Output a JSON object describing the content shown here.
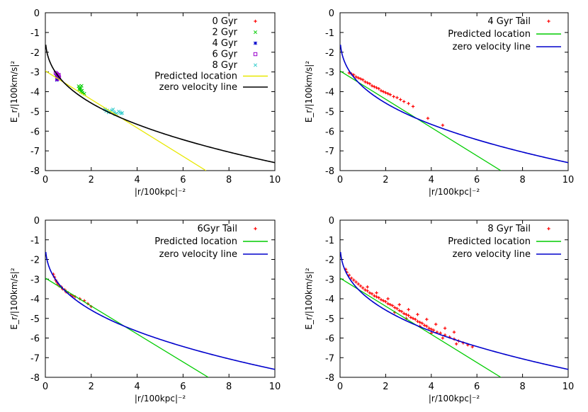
{
  "chart_data": [
    {
      "type": "scatter",
      "xlabel": "|r/100kpc|⁻²",
      "ylabel": "E_r/|100km/s|²",
      "xlim": [
        0,
        10
      ],
      "ylim": [
        -8,
        0
      ],
      "xticks": [
        "0",
        "2",
        "4",
        "6",
        "8",
        "10"
      ],
      "yticks": [
        "0",
        "-1",
        "-2",
        "-3",
        "-4",
        "-5",
        "-6",
        "-7",
        "-8"
      ],
      "legend_position": "top-right",
      "grid": false,
      "series": [
        {
          "name": "0 Gyr",
          "kind": "points",
          "marker": "+",
          "color": "#ff0000",
          "points": [
            [
              0.55,
              -3.12
            ]
          ]
        },
        {
          "name": "2 Gyr",
          "kind": "points",
          "marker": "x",
          "color": "#00cc00",
          "points": [
            [
              1.45,
              -3.72
            ],
            [
              1.5,
              -3.78
            ],
            [
              1.55,
              -3.82
            ],
            [
              1.5,
              -3.9
            ],
            [
              1.6,
              -3.95
            ],
            [
              1.55,
              -4.0
            ],
            [
              1.62,
              -4.05
            ],
            [
              1.7,
              -4.1
            ],
            [
              1.48,
              -3.85
            ],
            [
              1.58,
              -3.7
            ]
          ]
        },
        {
          "name": "4 Gyr",
          "kind": "points",
          "marker": "*",
          "color": "#0000cc",
          "points": [
            [
              0.48,
              -3.18
            ],
            [
              0.52,
              -3.25
            ],
            [
              0.56,
              -3.32
            ],
            [
              0.5,
              -3.4
            ]
          ]
        },
        {
          "name": "6 Gyr",
          "kind": "points",
          "marker": "square",
          "color": "#9900cc",
          "points": [
            [
              0.45,
              -3.05
            ],
            [
              0.5,
              -3.1
            ],
            [
              0.55,
              -3.2
            ],
            [
              0.6,
              -3.28
            ],
            [
              0.52,
              -3.35
            ],
            [
              0.58,
              -3.15
            ]
          ]
        },
        {
          "name": "8 Gyr",
          "kind": "points",
          "marker": "x",
          "color": "#33cccc",
          "points": [
            [
              2.6,
              -4.9
            ],
            [
              2.7,
              -4.95
            ],
            [
              2.8,
              -5.0
            ],
            [
              2.9,
              -4.95
            ],
            [
              3.0,
              -5.05
            ],
            [
              3.1,
              -5.1
            ],
            [
              3.2,
              -5.0
            ],
            [
              3.3,
              -5.1
            ],
            [
              2.75,
              -5.05
            ],
            [
              2.95,
              -4.9
            ],
            [
              3.05,
              -5.15
            ],
            [
              3.25,
              -5.05
            ],
            [
              2.65,
              -4.98
            ],
            [
              3.35,
              -5.08
            ]
          ]
        },
        {
          "name": "Predicted location",
          "kind": "line",
          "color": "#e8e800",
          "points": [
            [
              0,
              -2.95
            ],
            [
              7.0,
              -8.0
            ]
          ]
        },
        {
          "name": "zero velocity line",
          "kind": "zvl",
          "color": "#000000"
        }
      ]
    },
    {
      "type": "scatter",
      "xlabel": "|r/100kpc|⁻²",
      "ylabel": "E_r/|100km/s|²",
      "xlim": [
        0,
        10
      ],
      "ylim": [
        -8,
        0
      ],
      "xticks": [
        "0",
        "2",
        "4",
        "6",
        "8",
        "10"
      ],
      "yticks": [
        "0",
        "-1",
        "-2",
        "-3",
        "-4",
        "-5",
        "-6",
        "-7",
        "-8"
      ],
      "legend_position": "top-right",
      "grid": false,
      "series": [
        {
          "name": "4 Gyr Tail",
          "kind": "points",
          "marker": "+",
          "color": "#ff0000",
          "points": [
            [
              0.4,
              -3.05
            ],
            [
              0.5,
              -3.1
            ],
            [
              0.6,
              -3.15
            ],
            [
              0.7,
              -3.25
            ],
            [
              0.8,
              -3.3
            ],
            [
              0.9,
              -3.35
            ],
            [
              1.0,
              -3.4
            ],
            [
              1.1,
              -3.5
            ],
            [
              1.2,
              -3.55
            ],
            [
              1.3,
              -3.6
            ],
            [
              1.4,
              -3.7
            ],
            [
              1.5,
              -3.75
            ],
            [
              1.6,
              -3.8
            ],
            [
              1.7,
              -3.85
            ],
            [
              1.8,
              -3.95
            ],
            [
              1.9,
              -4.0
            ],
            [
              2.0,
              -4.05
            ],
            [
              2.1,
              -4.1
            ],
            [
              2.2,
              -4.15
            ],
            [
              2.35,
              -4.25
            ],
            [
              2.5,
              -4.3
            ],
            [
              2.65,
              -4.4
            ],
            [
              2.8,
              -4.5
            ],
            [
              3.0,
              -4.6
            ],
            [
              3.2,
              -4.75
            ],
            [
              3.85,
              -5.35
            ],
            [
              4.5,
              -5.7
            ]
          ]
        },
        {
          "name": "Predicted location",
          "kind": "line",
          "color": "#00cc00",
          "points": [
            [
              0,
              -2.95
            ],
            [
              7.05,
              -8.0
            ]
          ]
        },
        {
          "name": "zero velocity line",
          "kind": "zvl",
          "color": "#0000cc"
        }
      ]
    },
    {
      "type": "scatter",
      "xlabel": "|r/100kpc|⁻²",
      "ylabel": "E_r/|100km/s|²",
      "xlim": [
        0,
        10
      ],
      "ylim": [
        -8,
        0
      ],
      "xticks": [
        "0",
        "2",
        "4",
        "6",
        "8",
        "10"
      ],
      "yticks": [
        "0",
        "-1",
        "-2",
        "-3",
        "-4",
        "-5",
        "-6",
        "-7",
        "-8"
      ],
      "legend_position": "top-right",
      "grid": false,
      "series": [
        {
          "name": "6Gyr Tail",
          "kind": "points",
          "marker": "+",
          "color": "#ff0000",
          "points": [
            [
              0.35,
              -2.75
            ],
            [
              0.4,
              -2.9
            ],
            [
              0.45,
              -3.05
            ],
            [
              0.5,
              -3.15
            ],
            [
              0.55,
              -3.25
            ],
            [
              0.6,
              -3.35
            ],
            [
              0.7,
              -3.4
            ],
            [
              0.75,
              -3.5
            ],
            [
              0.85,
              -3.55
            ],
            [
              0.9,
              -3.65
            ],
            [
              1.0,
              -3.7
            ],
            [
              1.1,
              -3.8
            ],
            [
              1.2,
              -3.85
            ],
            [
              1.3,
              -3.9
            ],
            [
              1.5,
              -4.0
            ],
            [
              1.7,
              -4.1
            ],
            [
              1.85,
              -4.25
            ],
            [
              2.0,
              -4.4
            ]
          ]
        },
        {
          "name": "Predicted location",
          "kind": "line",
          "color": "#00cc00",
          "points": [
            [
              0,
              -2.95
            ],
            [
              7.1,
              -8.0
            ]
          ]
        },
        {
          "name": "zero velocity line",
          "kind": "zvl",
          "color": "#0000cc"
        }
      ]
    },
    {
      "type": "scatter",
      "xlabel": "|r/100kpc|⁻²",
      "ylabel": "E_r/|100km/s|²",
      "xlim": [
        0,
        10
      ],
      "ylim": [
        -8,
        0
      ],
      "xticks": [
        "0",
        "2",
        "4",
        "6",
        "8",
        "10"
      ],
      "yticks": [
        "0",
        "-1",
        "-2",
        "-3",
        "-4",
        "-5",
        "-6",
        "-7",
        "-8"
      ],
      "legend_position": "top-right",
      "grid": false,
      "series": [
        {
          "name": "8 Gyr Tail",
          "kind": "points",
          "marker": "+",
          "color": "#ff0000",
          "points": [
            [
              0.25,
              -2.5
            ],
            [
              0.3,
              -2.65
            ],
            [
              0.4,
              -2.8
            ],
            [
              0.5,
              -2.95
            ],
            [
              0.6,
              -3.05
            ],
            [
              0.7,
              -3.15
            ],
            [
              0.8,
              -3.25
            ],
            [
              0.9,
              -3.35
            ],
            [
              1.0,
              -3.45
            ],
            [
              1.1,
              -3.55
            ],
            [
              1.2,
              -3.6
            ],
            [
              1.3,
              -3.7
            ],
            [
              1.4,
              -3.75
            ],
            [
              1.5,
              -3.85
            ],
            [
              1.6,
              -3.9
            ],
            [
              1.7,
              -3.95
            ],
            [
              1.8,
              -4.05
            ],
            [
              1.9,
              -4.1
            ],
            [
              2.0,
              -4.15
            ],
            [
              2.1,
              -4.25
            ],
            [
              2.2,
              -4.3
            ],
            [
              2.3,
              -4.35
            ],
            [
              2.4,
              -4.45
            ],
            [
              2.5,
              -4.5
            ],
            [
              2.6,
              -4.6
            ],
            [
              2.7,
              -4.65
            ],
            [
              2.8,
              -4.75
            ],
            [
              2.9,
              -4.8
            ],
            [
              3.0,
              -4.85
            ],
            [
              3.1,
              -4.95
            ],
            [
              3.2,
              -5.0
            ],
            [
              3.3,
              -5.05
            ],
            [
              3.4,
              -5.15
            ],
            [
              3.5,
              -5.2
            ],
            [
              3.6,
              -5.25
            ],
            [
              3.7,
              -5.35
            ],
            [
              3.8,
              -5.4
            ],
            [
              3.9,
              -5.5
            ],
            [
              4.0,
              -5.55
            ],
            [
              4.1,
              -5.6
            ],
            [
              4.25,
              -5.7
            ],
            [
              4.4,
              -5.75
            ],
            [
              4.6,
              -5.85
            ],
            [
              4.8,
              -5.95
            ],
            [
              5.0,
              -6.05
            ],
            [
              5.2,
              -6.15
            ],
            [
              5.4,
              -6.25
            ],
            [
              5.6,
              -6.35
            ],
            [
              5.8,
              -6.45
            ],
            [
              1.2,
              -3.4
            ],
            [
              1.6,
              -3.7
            ],
            [
              2.1,
              -4.0
            ],
            [
              2.6,
              -4.3
            ],
            [
              3.0,
              -4.55
            ],
            [
              3.4,
              -4.8
            ],
            [
              3.8,
              -5.05
            ],
            [
              4.2,
              -5.3
            ],
            [
              4.6,
              -5.5
            ],
            [
              5.0,
              -5.7
            ],
            [
              2.4,
              -4.7
            ],
            [
              2.9,
              -5.0
            ],
            [
              3.5,
              -5.4
            ],
            [
              4.0,
              -5.75
            ],
            [
              4.5,
              -6.0
            ],
            [
              5.1,
              -6.3
            ]
          ]
        },
        {
          "name": "Predicted location",
          "kind": "line",
          "color": "#00cc00",
          "points": [
            [
              0,
              -2.95
            ],
            [
              7.05,
              -8.0
            ]
          ]
        },
        {
          "name": "zero velocity line",
          "kind": "zvl",
          "color": "#0000cc"
        }
      ]
    }
  ]
}
